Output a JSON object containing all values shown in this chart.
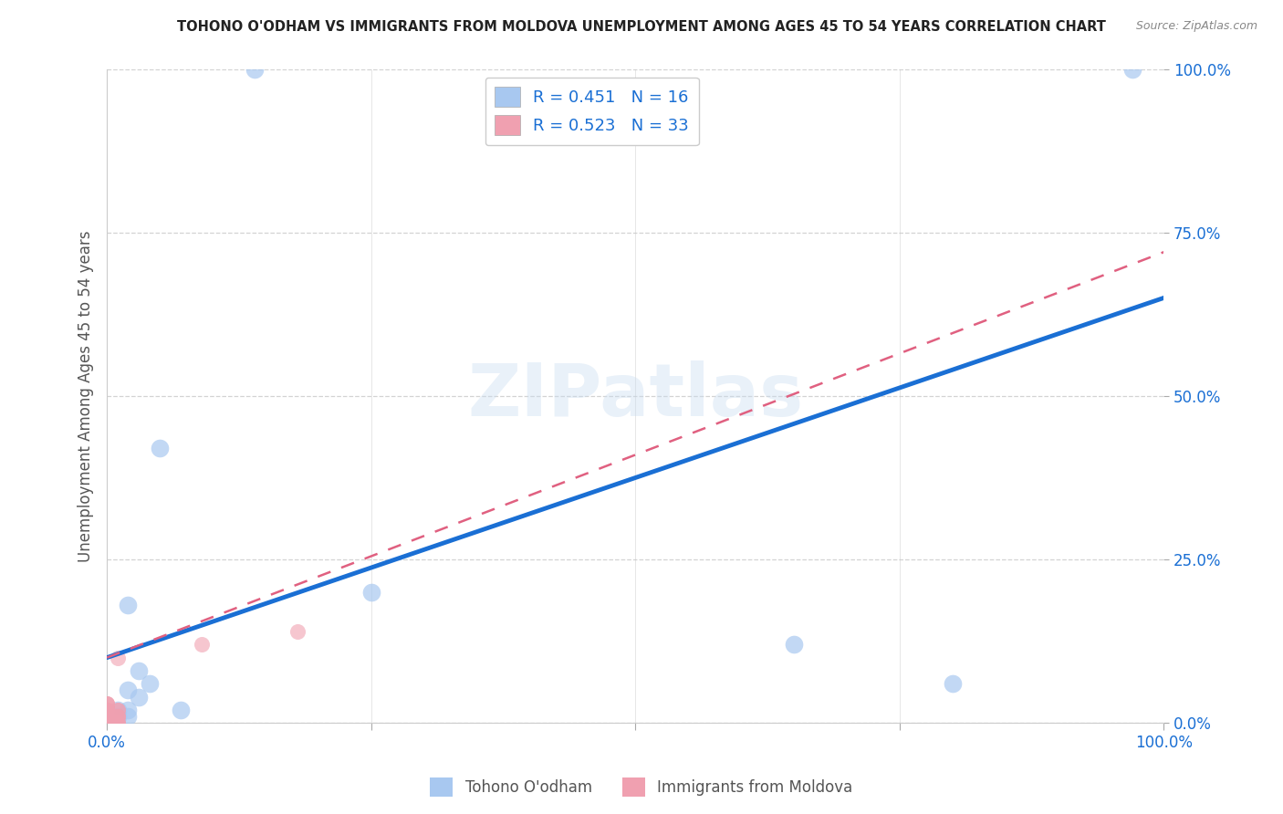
{
  "title": "TOHONO O'ODHAM VS IMMIGRANTS FROM MOLDOVA UNEMPLOYMENT AMONG AGES 45 TO 54 YEARS CORRELATION CHART",
  "source": "Source: ZipAtlas.com",
  "ylabel": "Unemployment Among Ages 45 to 54 years",
  "watermark": "ZIPatlas",
  "legend_blue_r": "R = 0.451",
  "legend_blue_n": "N = 16",
  "legend_pink_r": "R = 0.523",
  "legend_pink_n": "N = 33",
  "blue_color": "#a8c8f0",
  "pink_color": "#f0a0b0",
  "blue_line_color": "#1a6fd4",
  "pink_line_color": "#e06080",
  "grid_color": "#c8c8c8",
  "blue_scatter_x": [
    0.14,
    0.97,
    0.02,
    0.07,
    0.04,
    0.02,
    0.01,
    0.05,
    0.03,
    0.25,
    0.65,
    0.8,
    0.03,
    0.02,
    0.01,
    0.02
  ],
  "blue_scatter_y": [
    1.0,
    1.0,
    0.18,
    0.02,
    0.06,
    0.05,
    0.02,
    0.42,
    0.08,
    0.2,
    0.12,
    0.06,
    0.04,
    0.02,
    0.01,
    0.01
  ],
  "pink_scatter_x": [
    0.0,
    0.0,
    0.01,
    0.01,
    0.01,
    0.01,
    0.01,
    0.0,
    0.0,
    0.0,
    0.0,
    0.0,
    0.01,
    0.0,
    0.0,
    0.0,
    0.0,
    0.0,
    0.0,
    0.01,
    0.0,
    0.0,
    0.01,
    0.0,
    0.01,
    0.0,
    0.0,
    0.0,
    0.0,
    0.0,
    0.0,
    0.09,
    0.18
  ],
  "pink_scatter_y": [
    0.0,
    0.01,
    0.02,
    0.01,
    0.0,
    0.02,
    0.01,
    0.03,
    0.0,
    0.01,
    0.02,
    0.01,
    0.0,
    0.03,
    0.0,
    0.01,
    0.02,
    0.0,
    0.01,
    0.0,
    0.02,
    0.0,
    0.01,
    0.0,
    0.1,
    0.01,
    0.02,
    0.0,
    0.03,
    0.01,
    0.0,
    0.12,
    0.14
  ],
  "blue_line_x": [
    0.0,
    1.0
  ],
  "blue_line_y": [
    0.1,
    0.65
  ],
  "pink_line_x": [
    0.0,
    1.0
  ],
  "pink_line_y": [
    0.1,
    0.72
  ],
  "xlim": [
    0,
    1
  ],
  "ylim": [
    0,
    1
  ],
  "background_color": "#ffffff",
  "title_fontsize": 10.5,
  "axis_label_color": "#1a6fd4",
  "label_color": "#555555",
  "xtick_values": [
    0,
    0.25,
    0.5,
    0.75,
    1.0
  ],
  "ytick_values": [
    0.0,
    0.25,
    0.5,
    0.75,
    1.0
  ],
  "ytick_labels": [
    "0.0%",
    "25.0%",
    "50.0%",
    "75.0%",
    "100.0%"
  ]
}
